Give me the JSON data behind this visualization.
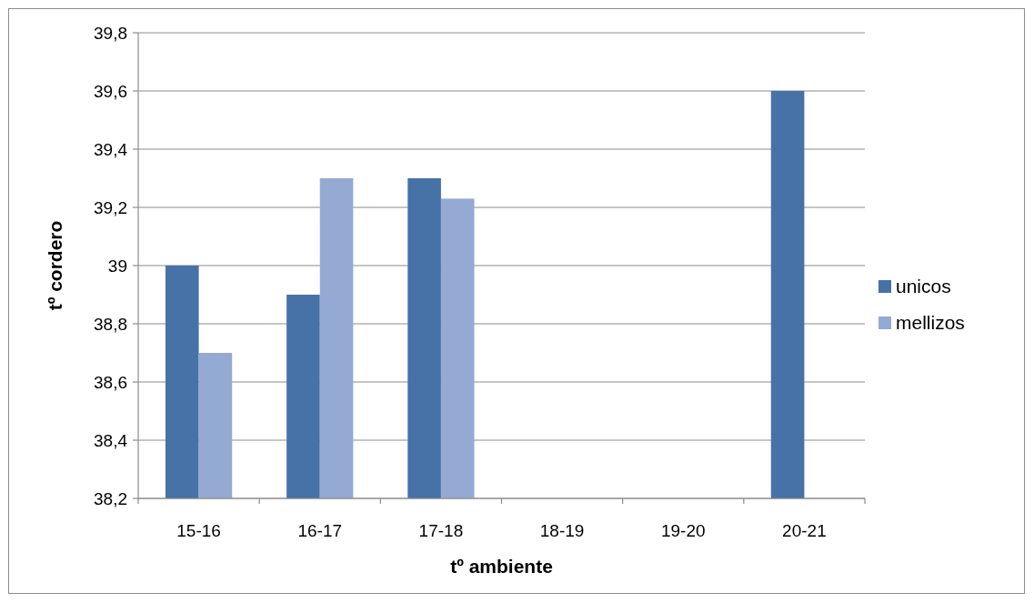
{
  "chart_data": {
    "type": "bar",
    "xlabel": "tº ambiente",
    "ylabel": "tº cordero",
    "categories": [
      "15-16",
      "16-17",
      "17-18",
      "18-19",
      "19-20",
      "20-21"
    ],
    "series": [
      {
        "name": "unicos",
        "color": "#4672a8",
        "values": [
          39,
          38.9,
          39.3,
          null,
          null,
          39.6
        ]
      },
      {
        "name": "mellizos",
        "color": "#95aad2",
        "values": [
          38.7,
          39.3,
          39.23,
          null,
          null,
          null
        ]
      }
    ],
    "ylim": [
      38.2,
      39.8
    ],
    "yticks": [
      {
        "value": 38.2,
        "label": "38,2"
      },
      {
        "value": 38.4,
        "label": "38,4"
      },
      {
        "value": 38.6,
        "label": "38,6"
      },
      {
        "value": 38.8,
        "label": "38,8"
      },
      39,
      {
        "value": 39.2,
        "label": "39,2"
      },
      {
        "value": 39.4,
        "label": "39,4"
      },
      {
        "value": 39.6,
        "label": "39,6"
      },
      {
        "value": 39.8,
        "label": "39,8"
      }
    ],
    "grid": "y",
    "legend": "right"
  }
}
